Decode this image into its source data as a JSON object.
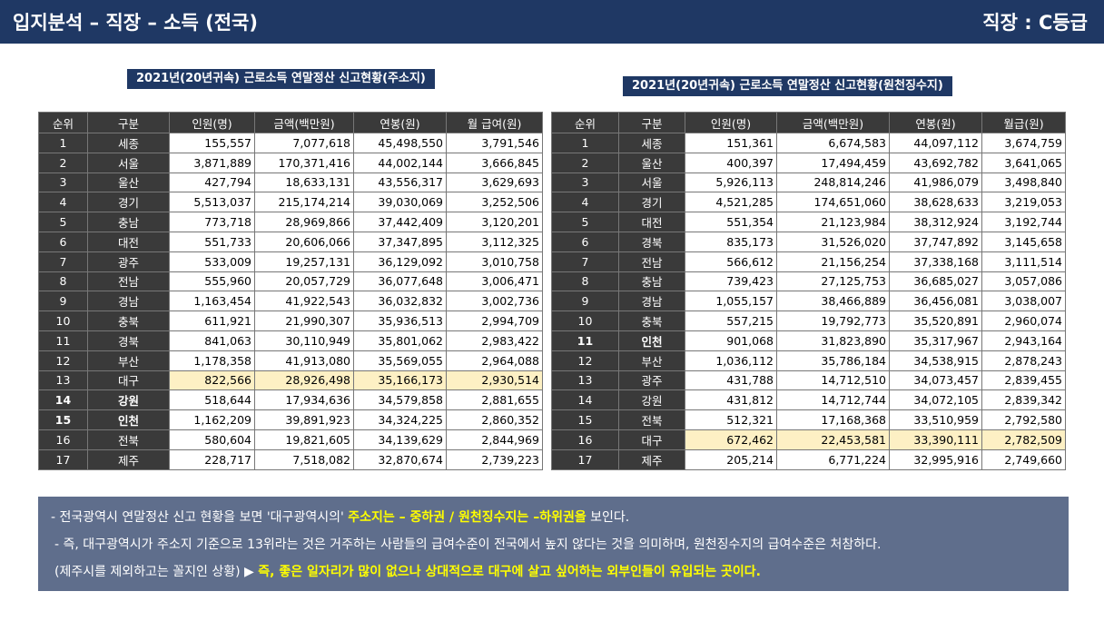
{
  "header": {
    "title": "입지분석 – 직장 – 소득 (전국)",
    "grade": "직장 : C등급"
  },
  "left": {
    "caption": "2021년(20년귀속) 근로소득 연말정산 신고현황(주소지)",
    "columns": [
      "순위",
      "구분",
      "인원(명)",
      "금액(백만원)",
      "연봉(원)",
      "월 급여(원)"
    ],
    "rows": [
      [
        "1",
        "세종",
        "155,557",
        "7,077,618",
        "45,498,550",
        "3,791,546"
      ],
      [
        "2",
        "서울",
        "3,871,889",
        "170,371,416",
        "44,002,144",
        "3,666,845"
      ],
      [
        "3",
        "울산",
        "427,794",
        "18,633,131",
        "43,556,317",
        "3,629,693"
      ],
      [
        "4",
        "경기",
        "5,513,037",
        "215,174,214",
        "39,030,069",
        "3,252,506"
      ],
      [
        "5",
        "충남",
        "773,718",
        "28,969,866",
        "37,442,409",
        "3,120,201"
      ],
      [
        "6",
        "대전",
        "551,733",
        "20,606,066",
        "37,347,895",
        "3,112,325"
      ],
      [
        "7",
        "광주",
        "533,009",
        "19,257,131",
        "36,129,092",
        "3,010,758"
      ],
      [
        "8",
        "전남",
        "555,960",
        "20,057,729",
        "36,077,648",
        "3,006,471"
      ],
      [
        "9",
        "경남",
        "1,163,454",
        "41,922,543",
        "36,032,832",
        "3,002,736"
      ],
      [
        "10",
        "충북",
        "611,921",
        "21,990,307",
        "35,936,513",
        "2,994,709"
      ],
      [
        "11",
        "경북",
        "841,063",
        "30,110,949",
        "35,801,062",
        "2,983,422"
      ],
      [
        "12",
        "부산",
        "1,178,358",
        "41,913,080",
        "35,569,055",
        "2,964,088"
      ],
      [
        "13",
        "대구",
        "822,566",
        "28,926,498",
        "35,166,173",
        "2,930,514"
      ],
      [
        "14",
        "강원",
        "518,644",
        "17,934,636",
        "34,579,858",
        "2,881,655"
      ],
      [
        "15",
        "인천",
        "1,162,209",
        "39,891,923",
        "34,324,225",
        "2,860,352"
      ],
      [
        "16",
        "전북",
        "580,604",
        "19,821,605",
        "34,139,629",
        "2,844,969"
      ],
      [
        "17",
        "제주",
        "228,717",
        "7,518,082",
        "32,870,674",
        "2,739,223"
      ]
    ]
  },
  "right": {
    "caption": "2021년(20년귀속) 근로소득 연말정산 신고현황(원천징수지)",
    "columns": [
      "순위",
      "구분",
      "인원(명)",
      "금액(백만원)",
      "연봉(원)",
      "월급(원)"
    ],
    "rows": [
      [
        "1",
        "세종",
        "151,361",
        "6,674,583",
        "44,097,112",
        "3,674,759"
      ],
      [
        "2",
        "울산",
        "400,397",
        "17,494,459",
        "43,692,782",
        "3,641,065"
      ],
      [
        "3",
        "서울",
        "5,926,113",
        "248,814,246",
        "41,986,079",
        "3,498,840"
      ],
      [
        "4",
        "경기",
        "4,521,285",
        "174,651,060",
        "38,628,633",
        "3,219,053"
      ],
      [
        "5",
        "대전",
        "551,354",
        "21,123,984",
        "38,312,924",
        "3,192,744"
      ],
      [
        "6",
        "경북",
        "835,173",
        "31,526,020",
        "37,747,892",
        "3,145,658"
      ],
      [
        "7",
        "전남",
        "566,612",
        "21,156,254",
        "37,338,168",
        "3,111,514"
      ],
      [
        "8",
        "충남",
        "739,423",
        "27,125,753",
        "36,685,027",
        "3,057,086"
      ],
      [
        "9",
        "경남",
        "1,055,157",
        "38,466,889",
        "36,456,081",
        "3,038,007"
      ],
      [
        "10",
        "충북",
        "557,215",
        "19,792,773",
        "35,520,891",
        "2,960,074"
      ],
      [
        "11",
        "인천",
        "901,068",
        "31,823,890",
        "35,317,967",
        "2,943,164"
      ],
      [
        "12",
        "부산",
        "1,036,112",
        "35,786,184",
        "34,538,915",
        "2,878,243"
      ],
      [
        "13",
        "광주",
        "431,788",
        "14,712,510",
        "34,073,457",
        "2,839,455"
      ],
      [
        "14",
        "강원",
        "431,812",
        "14,712,744",
        "34,072,105",
        "2,839,342"
      ],
      [
        "15",
        "전북",
        "512,321",
        "17,168,368",
        "33,510,959",
        "2,792,580"
      ],
      [
        "16",
        "대구",
        "672,462",
        "22,453,581",
        "33,390,111",
        "2,782,509"
      ],
      [
        "17",
        "제주",
        "205,214",
        "6,771,224",
        "32,995,916",
        "2,749,660"
      ]
    ]
  },
  "note": {
    "line1_a": "- 전국광역시 연말정산 신고 현황을 보면 '대구광역시의' ",
    "line1_b": "주소지는 – 중하권 / 원천징수지는 –하위권을",
    "line1_c": " 보인다.",
    "line2": "- 즉, 대구광역시가 주소지 기준으로 13위라는 것은 거주하는 사람들의 급여수준이 전국에서 높지 않다는 것을 의미하며, 원천징수지의 급여수준은 처참하다.",
    "line3_a": "(제주시를 제외하고는 꼴지인 상황) ▶ ",
    "line3_b": "즉, 좋은 일자리가 많이 없으나 상대적으로 대구에 살고 싶어하는 외부인들이 유입되는 곳이다."
  },
  "colors": {
    "header_bg": "#1f3864",
    "highlight": "#fdf0c4",
    "note_bg": "#5f6e8c",
    "note_accent": "#ffff00"
  }
}
